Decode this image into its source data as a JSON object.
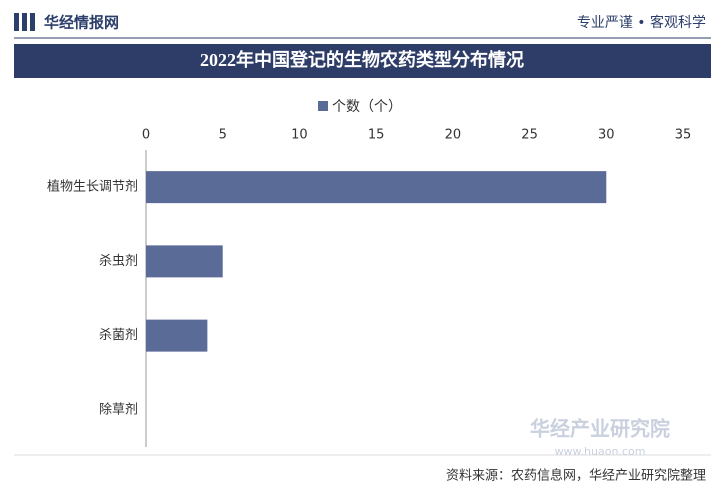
{
  "header": {
    "brand": "华经情报网",
    "slogan": "专业严谨 • 客观科学"
  },
  "chart_data": {
    "type": "bar",
    "orientation": "horizontal",
    "title": "2022年中国登记的生物农药类型分布情况",
    "categories": [
      "植物生长调节剂",
      "杀虫剂",
      "杀菌剂",
      "除草剂"
    ],
    "series": [
      {
        "name": "个数（个）",
        "color": "#5b6b98",
        "values": [
          30,
          5,
          4,
          0
        ]
      }
    ],
    "xlim": [
      0,
      35
    ],
    "xticks": [
      0,
      5,
      10,
      15,
      20,
      25,
      30,
      35
    ],
    "grid": false,
    "legend": "top"
  },
  "footer": {
    "source": "资料来源：农药信息网，华经产业研究院整理",
    "logo": "华经产业研究院",
    "url": "www.huaon.com"
  }
}
